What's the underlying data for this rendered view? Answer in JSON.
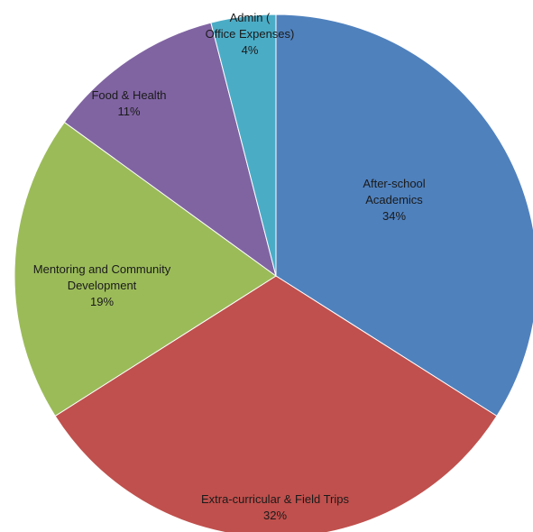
{
  "chart_data": {
    "type": "pie",
    "title": "",
    "start": "12 o'clock",
    "direction": "clockwise",
    "legend": "none",
    "slices": [
      {
        "lines": [
          "After-school",
          "Academics"
        ],
        "pct_label": "34%",
        "value": 34,
        "color": "#4F81BD"
      },
      {
        "lines": [
          "Extra-curricular & Field Trips"
        ],
        "pct_label": "32%",
        "value": 32,
        "color": "#C0504D"
      },
      {
        "lines": [
          "Mentoring and Community",
          "Development"
        ],
        "pct_label": "19%",
        "value": 19,
        "color": "#9BBB59"
      },
      {
        "lines": [
          "Food & Health"
        ],
        "pct_label": "11%",
        "value": 11,
        "color": "#8064A2"
      },
      {
        "lines": [
          "Admin (",
          "Office Expenses)"
        ],
        "pct_label": "4%",
        "value": 4,
        "color": "#4BACC6"
      }
    ]
  }
}
